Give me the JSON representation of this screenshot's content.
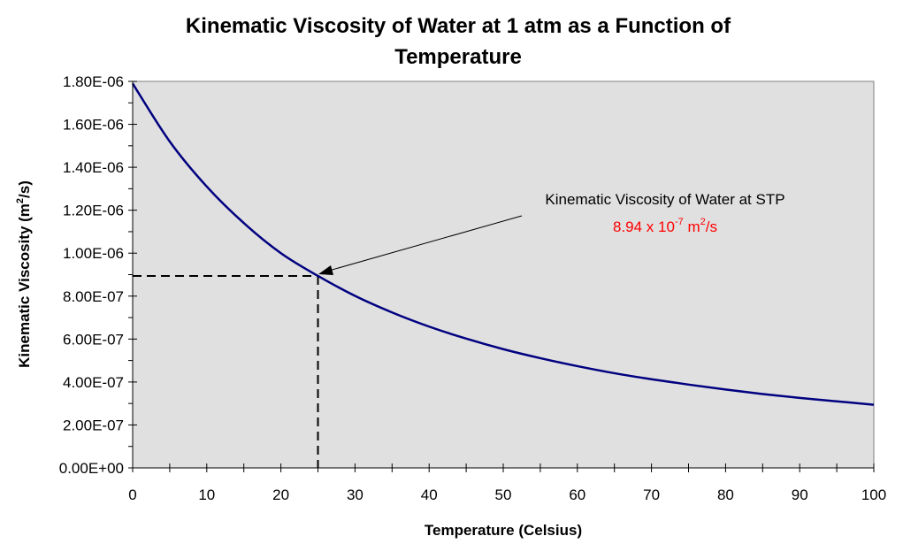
{
  "chart_data": {
    "type": "line",
    "title_lines": [
      "Kinematic Viscosity of Water at 1 atm as a Function of",
      "Temperature"
    ],
    "xlabel": "Temperature (Celsius)",
    "ylabel": {
      "main": "Kinematic Viscosity (m",
      "sup": "2",
      "end": "/s)"
    },
    "xlim": [
      0,
      100
    ],
    "ylim": [
      0,
      1.8e-06
    ],
    "x_ticks": [
      "0",
      "10",
      "20",
      "30",
      "40",
      "50",
      "60",
      "70",
      "80",
      "90",
      "100"
    ],
    "y_ticks": [
      "0.00E+00",
      "2.00E-07",
      "4.00E-07",
      "6.00E-07",
      "8.00E-07",
      "1.00E-06",
      "1.20E-06",
      "1.40E-06",
      "1.60E-06",
      "1.80E-06"
    ],
    "grid": false,
    "background": "#e0e0e0",
    "series": [
      {
        "name": "Kinematic Viscosity",
        "color": "#000080",
        "x": [
          0,
          5,
          10,
          15,
          20,
          25,
          30,
          35,
          40,
          45,
          50,
          55,
          60,
          65,
          70,
          75,
          80,
          85,
          90,
          95,
          100
        ],
        "y": [
          1.79e-06,
          1.52e-06,
          1.31e-06,
          1.14e-06,
          1e-06,
          8.94e-07,
          8.01e-07,
          7.24e-07,
          6.58e-07,
          6.02e-07,
          5.53e-07,
          5.11e-07,
          4.74e-07,
          4.41e-07,
          4.13e-07,
          3.88e-07,
          3.65e-07,
          3.44e-07,
          3.26e-07,
          3.1e-07,
          2.94e-07
        ]
      }
    ],
    "annotation": {
      "point": {
        "x": 25,
        "y": 8.94e-07
      },
      "line1": "Kinematic Viscosity of Water at STP",
      "value_main": "8.94 x 10",
      "value_exp": "-7",
      "value_unit": " m",
      "value_unit_sup": "2",
      "value_unit_end": "/s",
      "color": "#ff0000"
    }
  }
}
